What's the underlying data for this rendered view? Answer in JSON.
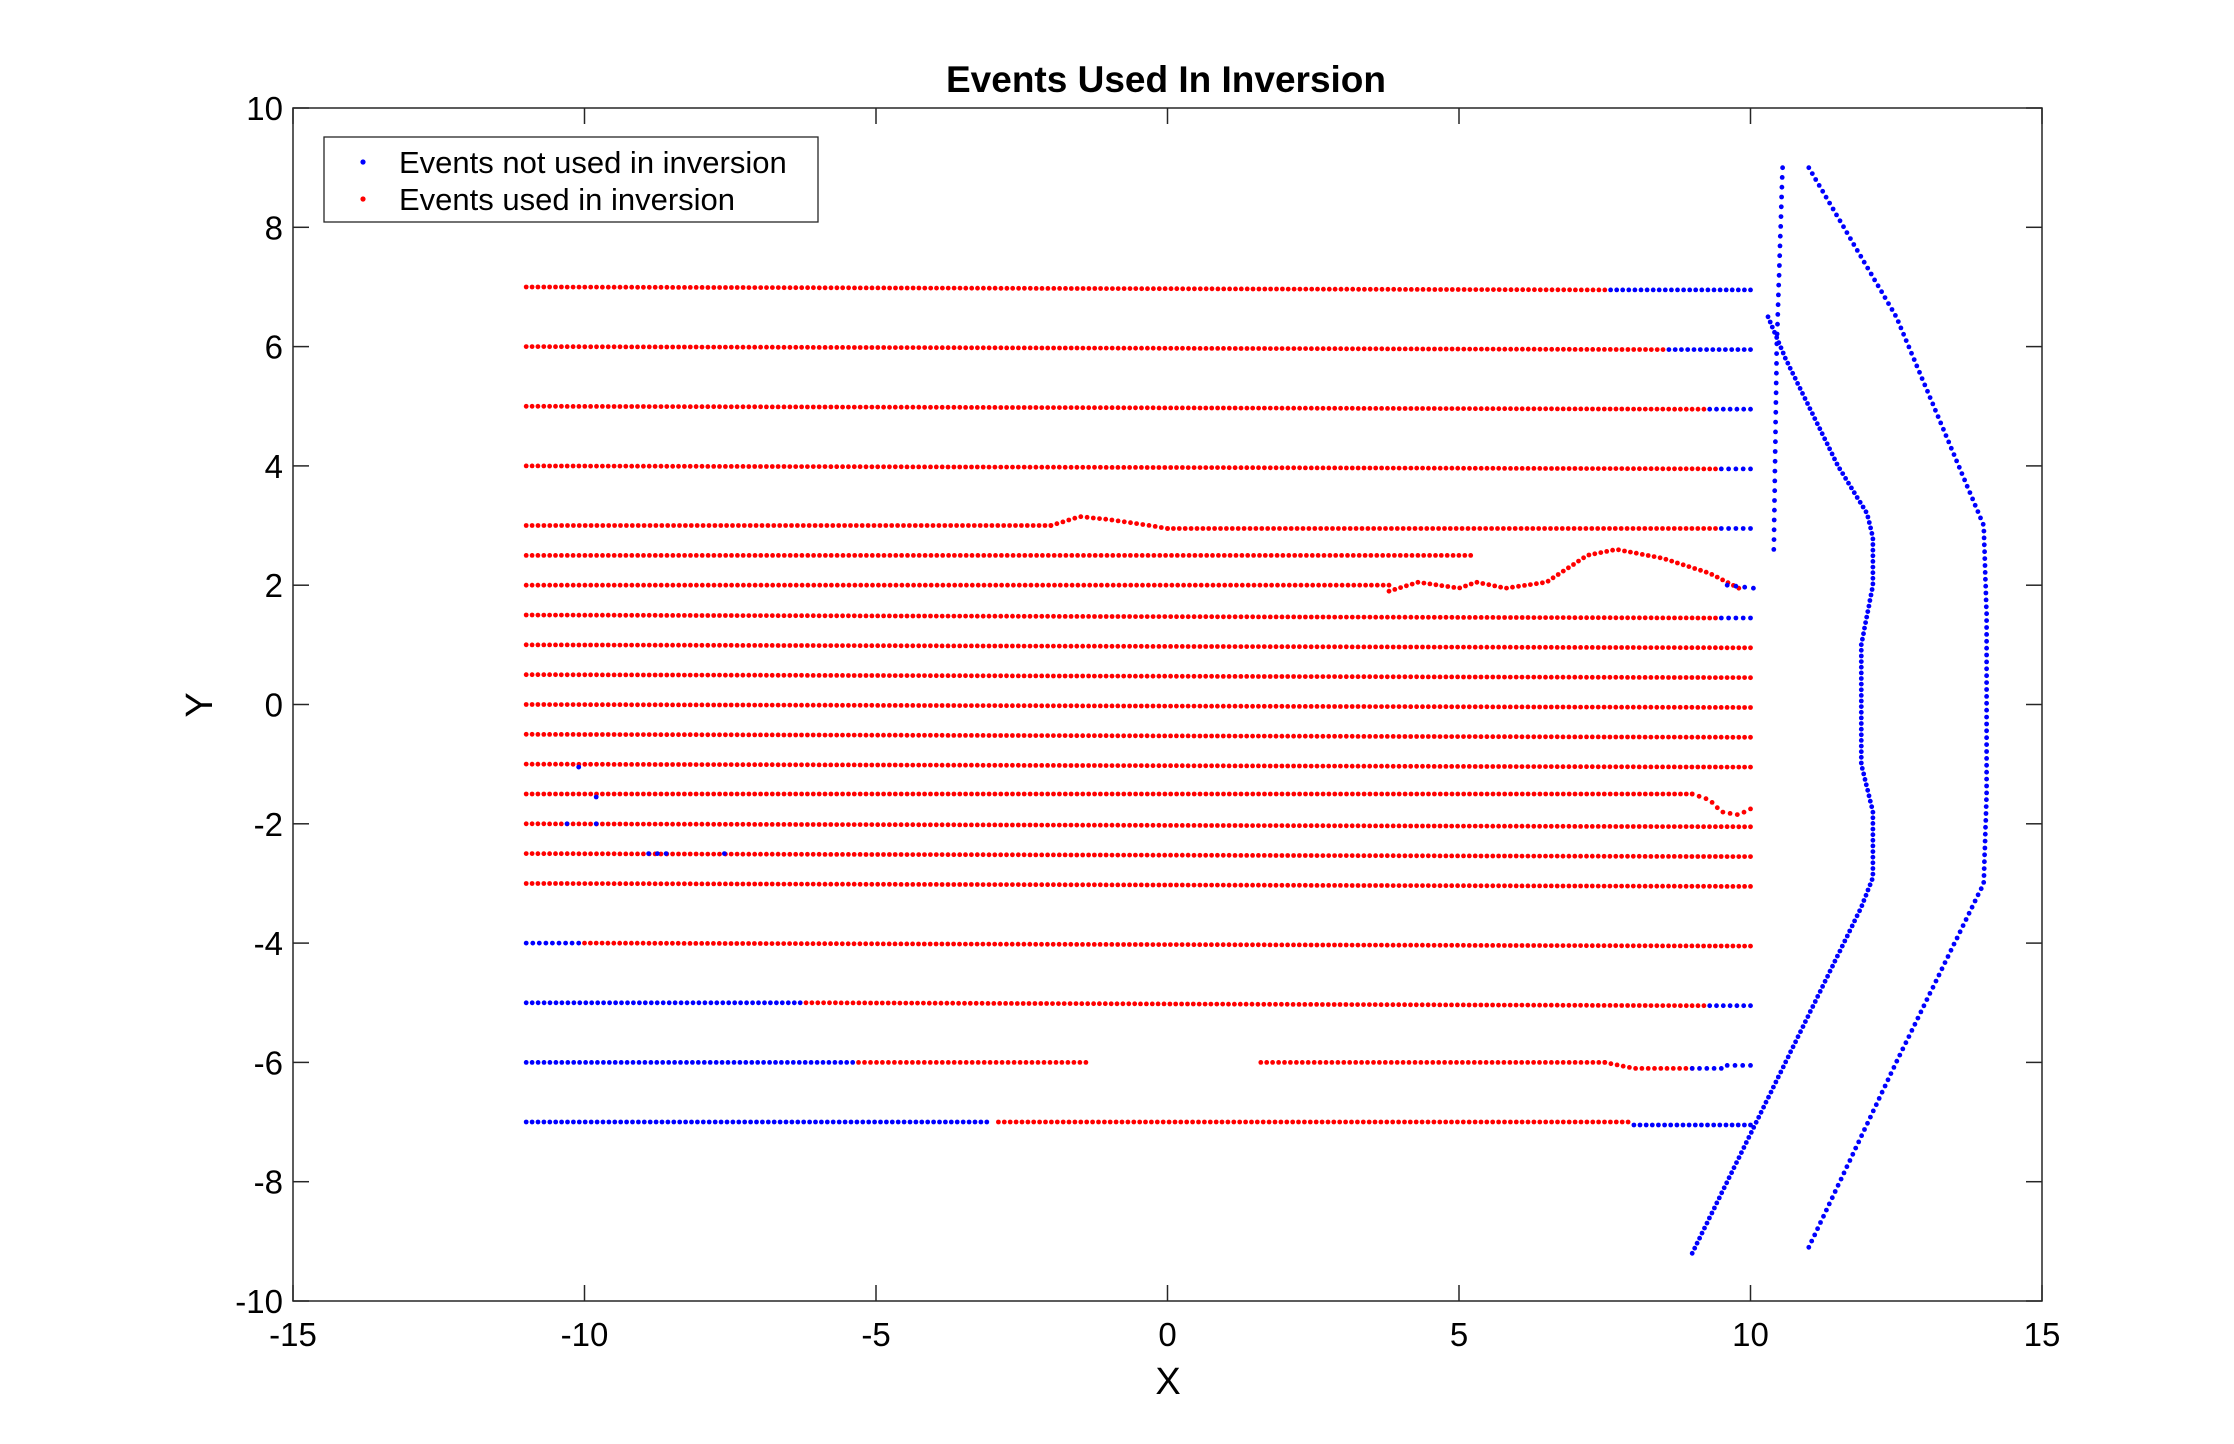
{
  "chart_data": {
    "type": "scatter",
    "title": "Events Used In Inversion",
    "xlabel": "X",
    "ylabel": "Y",
    "xlim": [
      -15,
      15
    ],
    "ylim": [
      -10,
      10
    ],
    "xticks": [
      -15,
      -10,
      -5,
      0,
      5,
      10,
      15
    ],
    "yticks": [
      -10,
      -8,
      -6,
      -4,
      -2,
      0,
      2,
      4,
      6,
      8,
      10
    ],
    "xtick_labels": [
      "-15",
      "-10",
      "-5",
      "0",
      "5",
      "10",
      "15"
    ],
    "ytick_labels": [
      "-10",
      "-8",
      "-6",
      "-4",
      "-2",
      "0",
      "2",
      "4",
      "6",
      "8",
      "10"
    ],
    "grid": false,
    "box": true,
    "legend_position": "top-left",
    "colors": {
      "not_used": "#0000ff",
      "used": "#ff0000"
    },
    "series": [
      {
        "name": "Events not used in inversion",
        "color": "#0000ff",
        "marker": "dot",
        "segments": [
          {
            "from": [
              7.6,
              6.95
            ],
            "to": [
              10.0,
              6.95
            ],
            "n": 24
          },
          {
            "from": [
              8.6,
              5.95
            ],
            "to": [
              10.0,
              5.95
            ],
            "n": 14
          },
          {
            "from": [
              9.3,
              4.95
            ],
            "to": [
              10.0,
              4.95
            ],
            "n": 7
          },
          {
            "from": [
              9.5,
              3.95
            ],
            "to": [
              10.0,
              3.95
            ],
            "n": 5
          },
          {
            "from": [
              9.5,
              2.95
            ],
            "to": [
              10.0,
              2.95
            ],
            "n": 5
          },
          {
            "from": [
              9.6,
              2.0
            ],
            "to": [
              10.05,
              1.95
            ],
            "n": 4
          },
          {
            "from": [
              9.5,
              1.45
            ],
            "to": [
              10.0,
              1.45
            ],
            "n": 5
          },
          {
            "from": [
              -11.0,
              -4.0
            ],
            "to": [
              -10.1,
              -4.0
            ],
            "n": 9
          },
          {
            "from": [
              -11.0,
              -5.0
            ],
            "to": [
              -6.3,
              -5.0
            ],
            "n": 47
          },
          {
            "from": [
              9.3,
              -5.05
            ],
            "to": [
              10.0,
              -5.05
            ],
            "n": 7
          },
          {
            "from": [
              -11.0,
              -6.0
            ],
            "to": [
              -5.4,
              -6.0
            ],
            "n": 56
          },
          {
            "from": [
              9.0,
              -6.1
            ],
            "to": [
              9.5,
              -6.1
            ],
            "n": 5
          },
          {
            "from": [
              9.6,
              -6.05
            ],
            "to": [
              10.0,
              -6.05
            ],
            "n": 4
          },
          {
            "from": [
              -11.0,
              -7.0
            ],
            "to": [
              -3.1,
              -7.0
            ],
            "n": 79
          },
          {
            "from": [
              8.0,
              -7.05
            ],
            "to": [
              10.0,
              -7.05
            ],
            "n": 20
          },
          {
            "from": [
              -10.1,
              -1.05
            ],
            "to": [
              -10.1,
              -1.05
            ],
            "n": 1
          },
          {
            "from": [
              -9.8,
              -1.55
            ],
            "to": [
              -9.8,
              -1.55
            ],
            "n": 1
          },
          {
            "from": [
              -10.3,
              -2.0
            ],
            "to": [
              -10.3,
              -2.0
            ],
            "n": 1
          },
          {
            "from": [
              -9.8,
              -2.0
            ],
            "to": [
              -9.8,
              -2.0
            ],
            "n": 1
          },
          {
            "from": [
              -8.9,
              -2.5
            ],
            "to": [
              -8.6,
              -2.5
            ],
            "n": 3
          },
          {
            "from": [
              -7.6,
              -2.5
            ],
            "to": [
              -7.6,
              -2.5
            ],
            "n": 1
          }
        ],
        "polylines": [
          {
            "points": [
              [
                10.55,
                9.0
              ],
              [
                10.45,
                6.0
              ],
              [
                10.4,
                2.6
              ]
            ],
            "n": 40
          },
          {
            "points": [
              [
                10.3,
                6.5
              ],
              [
                10.6,
                5.8
              ],
              [
                11.5,
                4.0
              ],
              [
                12.0,
                3.2
              ],
              [
                12.1,
                2.8
              ],
              [
                12.1,
                2.0
              ],
              [
                11.9,
                1.0
              ],
              [
                11.9,
                -1.0
              ],
              [
                12.1,
                -1.8
              ],
              [
                12.1,
                -2.9
              ],
              [
                11.9,
                -3.4
              ],
              [
                10.1,
                -7.0
              ],
              [
                9.0,
                -9.2
              ]
            ],
            "n": 180
          },
          {
            "points": [
              [
                11.0,
                9.0
              ],
              [
                12.5,
                6.5
              ],
              [
                14.0,
                3.0
              ],
              [
                14.05,
                1.5
              ],
              [
                14.05,
                -1.5
              ],
              [
                14.0,
                -3.0
              ],
              [
                12.5,
                -6.0
              ],
              [
                11.0,
                -9.1
              ]
            ],
            "n": 170
          }
        ]
      },
      {
        "name": "Events used in inversion",
        "color": "#ff0000",
        "marker": "dot",
        "segments": [
          {
            "from": [
              -11.0,
              7.0
            ],
            "to": [
              7.5,
              6.95
            ],
            "n": 185
          },
          {
            "from": [
              -11.0,
              6.0
            ],
            "to": [
              8.5,
              5.95
            ],
            "n": 195
          },
          {
            "from": [
              -11.0,
              5.0
            ],
            "to": [
              9.2,
              4.95
            ],
            "n": 202
          },
          {
            "from": [
              -11.0,
              4.0
            ],
            "to": [
              9.4,
              3.95
            ],
            "n": 204
          },
          {
            "from": [
              -11.0,
              3.0
            ],
            "to": [
              -2.0,
              3.0
            ],
            "n": 90
          },
          {
            "from": [
              0.0,
              2.95
            ],
            "to": [
              9.4,
              2.95
            ],
            "n": 94
          },
          {
            "from": [
              -11.0,
              2.5
            ],
            "to": [
              5.2,
              2.5
            ],
            "n": 162
          },
          {
            "from": [
              -11.0,
              2.0
            ],
            "to": [
              3.8,
              2.0
            ],
            "n": 148
          },
          {
            "from": [
              -11.0,
              1.5
            ],
            "to": [
              9.4,
              1.45
            ],
            "n": 204
          },
          {
            "from": [
              -11.0,
              1.0
            ],
            "to": [
              10.0,
              0.95
            ],
            "n": 210
          },
          {
            "from": [
              -11.0,
              0.5
            ],
            "to": [
              10.0,
              0.45
            ],
            "n": 210
          },
          {
            "from": [
              -11.0,
              0.0
            ],
            "to": [
              10.0,
              -0.05
            ],
            "n": 210
          },
          {
            "from": [
              -11.0,
              -0.5
            ],
            "to": [
              10.0,
              -0.55
            ],
            "n": 210
          },
          {
            "from": [
              -11.0,
              -1.0
            ],
            "to": [
              10.0,
              -1.05
            ],
            "n": 210
          },
          {
            "from": [
              -11.0,
              -1.5
            ],
            "to": [
              9.0,
              -1.5
            ],
            "n": 200
          },
          {
            "from": [
              -11.0,
              -2.0
            ],
            "to": [
              10.0,
              -2.05
            ],
            "n": 210
          },
          {
            "from": [
              -11.0,
              -2.5
            ],
            "to": [
              10.0,
              -2.55
            ],
            "n": 210
          },
          {
            "from": [
              -11.0,
              -3.0
            ],
            "to": [
              10.0,
              -3.05
            ],
            "n": 210
          },
          {
            "from": [
              -10.0,
              -4.0
            ],
            "to": [
              10.0,
              -4.05
            ],
            "n": 200
          },
          {
            "from": [
              -6.2,
              -5.0
            ],
            "to": [
              9.2,
              -5.05
            ],
            "n": 154
          },
          {
            "from": [
              -5.3,
              -6.0
            ],
            "to": [
              -1.4,
              -6.0
            ],
            "n": 39
          },
          {
            "from": [
              1.6,
              -6.0
            ],
            "to": [
              7.5,
              -6.0
            ],
            "n": 59
          },
          {
            "from": [
              -2.9,
              -7.0
            ],
            "to": [
              7.9,
              -7.0
            ],
            "n": 108
          }
        ],
        "polylines": [
          {
            "points": [
              [
                -2.0,
                3.0
              ],
              [
                -1.5,
                3.15
              ],
              [
                -1.0,
                3.1
              ],
              [
                -0.3,
                3.0
              ],
              [
                0.0,
                2.95
              ]
            ],
            "n": 20
          },
          {
            "points": [
              [
                3.8,
                1.9
              ],
              [
                4.3,
                2.05
              ],
              [
                5.0,
                1.95
              ],
              [
                5.3,
                2.05
              ],
              [
                5.8,
                1.95
              ],
              [
                6.5,
                2.05
              ],
              [
                7.2,
                2.5
              ],
              [
                7.7,
                2.6
              ],
              [
                8.5,
                2.45
              ],
              [
                9.3,
                2.2
              ],
              [
                9.8,
                1.95
              ]
            ],
            "n": 62
          },
          {
            "points": [
              [
                9.0,
                -1.5
              ],
              [
                9.3,
                -1.6
              ],
              [
                9.5,
                -1.8
              ],
              [
                9.8,
                -1.85
              ],
              [
                10.0,
                -1.75
              ]
            ],
            "n": 10
          },
          {
            "points": [
              [
                7.5,
                -6.0
              ],
              [
                8.0,
                -6.1
              ],
              [
                9.0,
                -6.1
              ]
            ],
            "n": 15
          }
        ]
      }
    ]
  }
}
